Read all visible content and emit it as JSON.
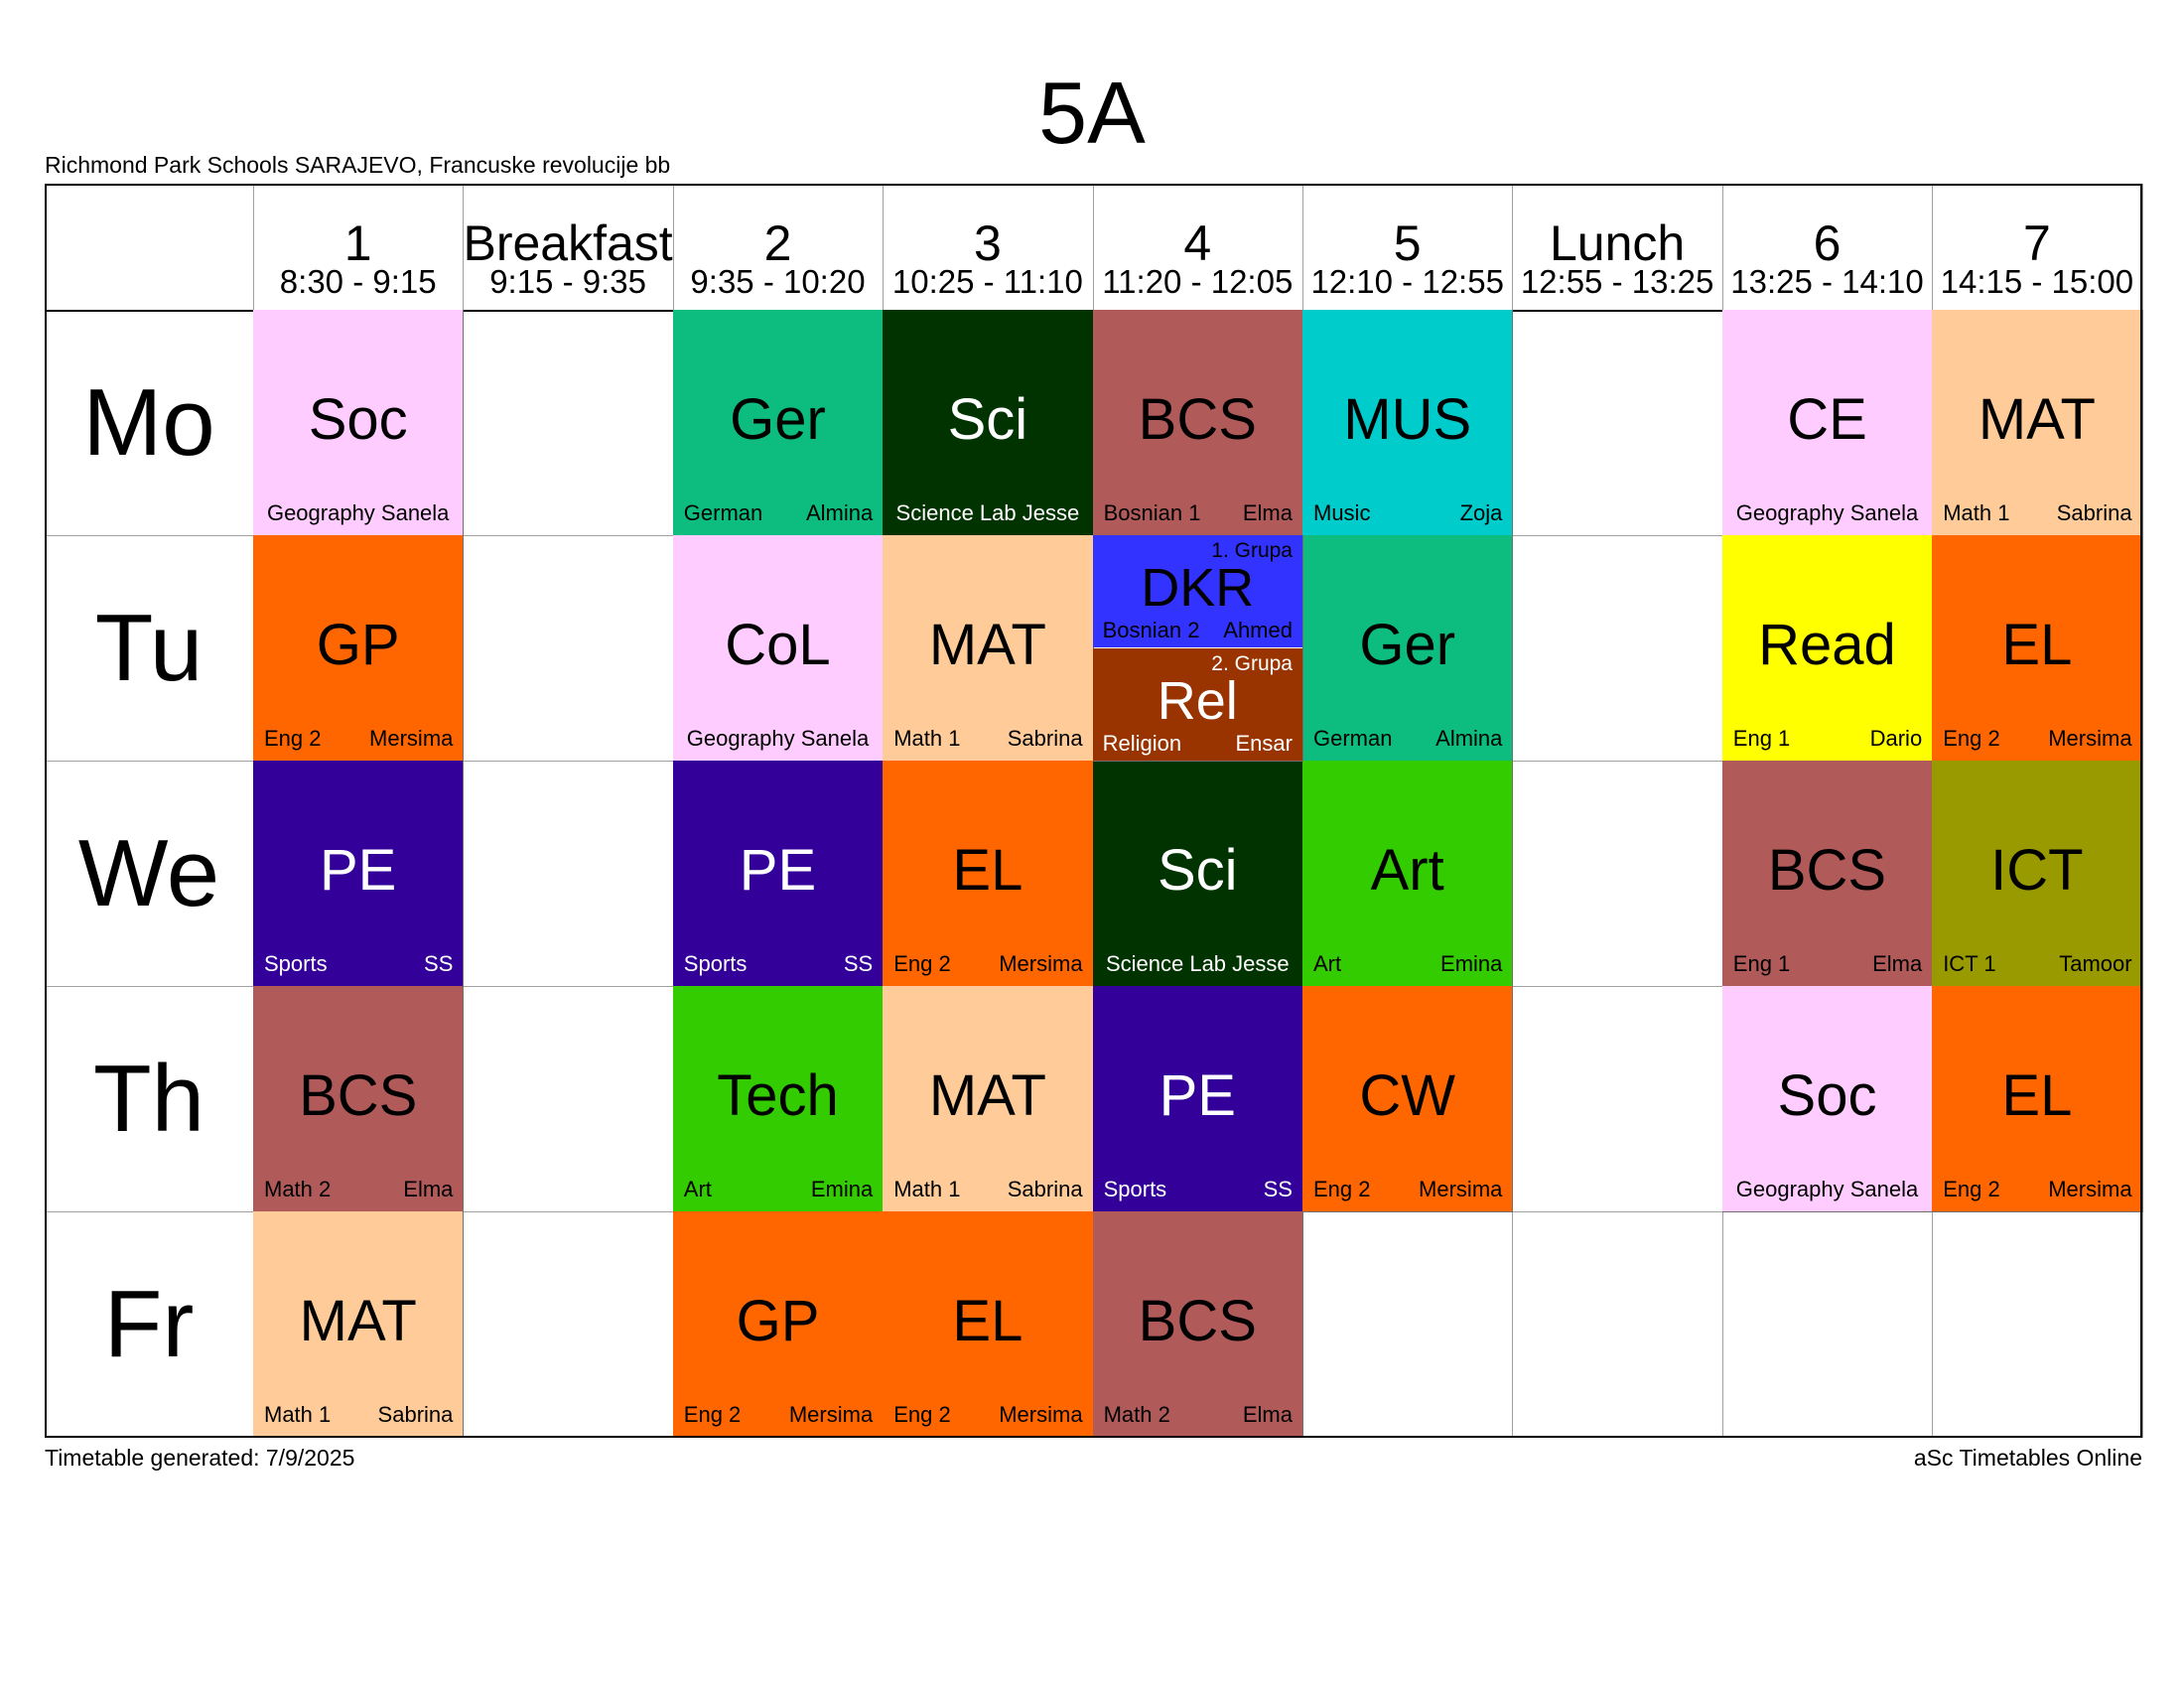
{
  "title": "5A",
  "school": "Richmond Park Schools SARAJEVO, Francuske revolucije bb",
  "footer": {
    "generated": "Timetable generated: 7/9/2025",
    "brand": "aSc Timetables Online"
  },
  "periods": [
    {
      "num": "1",
      "time": "8:30 - 9:15"
    },
    {
      "num": "Breakfast",
      "time": "9:15 - 9:35"
    },
    {
      "num": "2",
      "time": "9:35 - 10:20"
    },
    {
      "num": "3",
      "time": "10:25 - 11:10"
    },
    {
      "num": "4",
      "time": "11:20 - 12:05"
    },
    {
      "num": "5",
      "time": "12:10 - 12:55"
    },
    {
      "num": "Lunch",
      "time": "12:55 - 13:25"
    },
    {
      "num": "6",
      "time": "13:25 - 14:10"
    },
    {
      "num": "7",
      "time": "14:15 - 15:00"
    }
  ],
  "days": [
    "Mo",
    "Tu",
    "We",
    "Th",
    "Fr"
  ],
  "colors": {
    "pink": "#ffccff",
    "green_teal": "#0dbd80",
    "dark_green": "#003300",
    "brown": "#b05a5a",
    "cyan": "#00cccc",
    "peach": "#ffcc99",
    "orange": "#ff6600",
    "blue": "#3333ff",
    "rust": "#993300",
    "yellow": "#ffff00",
    "purple": "#330099",
    "lime": "#33cc00",
    "olive": "#999900"
  },
  "lessons": [
    {
      "day": 0,
      "col": 0,
      "subject": "Soc",
      "room": "Geography Sanela",
      "teacher": "",
      "color": "#ffccff",
      "light": false,
      "centered": true
    },
    {
      "day": 0,
      "col": 2,
      "subject": "Ger",
      "room": "German",
      "teacher": "Almina",
      "color": "#0dbd80",
      "light": false
    },
    {
      "day": 0,
      "col": 3,
      "subject": "Sci",
      "room": "Science Lab Jesse",
      "teacher": "",
      "color": "#003300",
      "light": true,
      "centered": true
    },
    {
      "day": 0,
      "col": 4,
      "subject": "BCS",
      "room": "Bosnian 1",
      "teacher": "Elma",
      "color": "#b05a5a",
      "light": false
    },
    {
      "day": 0,
      "col": 5,
      "subject": "MUS",
      "room": "Music",
      "teacher": "Zoja",
      "color": "#00cccc",
      "light": false
    },
    {
      "day": 0,
      "col": 7,
      "subject": "CE",
      "room": "Geography Sanela",
      "teacher": "",
      "color": "#ffccff",
      "light": false,
      "centered": true
    },
    {
      "day": 0,
      "col": 8,
      "subject": "MAT",
      "room": "Math 1",
      "teacher": "Sabrina",
      "color": "#ffcc99",
      "light": false
    },
    {
      "day": 1,
      "col": 0,
      "subject": "GP",
      "room": "Eng 2",
      "teacher": "Mersima",
      "color": "#ff6600",
      "light": false
    },
    {
      "day": 1,
      "col": 2,
      "subject": "CoL",
      "room": "Geography Sanela",
      "teacher": "",
      "color": "#ffccff",
      "light": false,
      "centered": true
    },
    {
      "day": 1,
      "col": 3,
      "subject": "MAT",
      "room": "Math 1",
      "teacher": "Sabrina",
      "color": "#ffcc99",
      "light": false
    },
    {
      "day": 1,
      "col": 5,
      "subject": "Ger",
      "room": "German",
      "teacher": "Almina",
      "color": "#0dbd80",
      "light": false
    },
    {
      "day": 1,
      "col": 7,
      "subject": "Read",
      "room": "Eng 1",
      "teacher": "Dario",
      "color": "#ffff00",
      "light": false
    },
    {
      "day": 1,
      "col": 8,
      "subject": "EL",
      "room": "Eng 2",
      "teacher": "Mersima",
      "color": "#ff6600",
      "light": false
    },
    {
      "day": 2,
      "col": 0,
      "subject": "PE",
      "room": "Sports",
      "teacher": "SS",
      "color": "#330099",
      "light": true
    },
    {
      "day": 2,
      "col": 2,
      "subject": "PE",
      "room": "Sports",
      "teacher": "SS",
      "color": "#330099",
      "light": true
    },
    {
      "day": 2,
      "col": 3,
      "subject": "EL",
      "room": "Eng 2",
      "teacher": "Mersima",
      "color": "#ff6600",
      "light": false
    },
    {
      "day": 2,
      "col": 4,
      "subject": "Sci",
      "room": "Science Lab Jesse",
      "teacher": "",
      "color": "#003300",
      "light": true,
      "centered": true
    },
    {
      "day": 2,
      "col": 5,
      "subject": "Art",
      "room": "Art",
      "teacher": "Emina",
      "color": "#33cc00",
      "light": false
    },
    {
      "day": 2,
      "col": 7,
      "subject": "BCS",
      "room": "Eng 1",
      "teacher": "Elma",
      "color": "#b05a5a",
      "light": false
    },
    {
      "day": 2,
      "col": 8,
      "subject": "ICT",
      "room": "ICT 1",
      "teacher": "Tamoor",
      "color": "#999900",
      "light": false
    },
    {
      "day": 3,
      "col": 0,
      "subject": "BCS",
      "room": "Math 2",
      "teacher": "Elma",
      "color": "#b05a5a",
      "light": false
    },
    {
      "day": 3,
      "col": 2,
      "subject": "Tech",
      "room": "Art",
      "teacher": "Emina",
      "color": "#33cc00",
      "light": false
    },
    {
      "day": 3,
      "col": 3,
      "subject": "MAT",
      "room": "Math 1",
      "teacher": "Sabrina",
      "color": "#ffcc99",
      "light": false
    },
    {
      "day": 3,
      "col": 4,
      "subject": "PE",
      "room": "Sports",
      "teacher": "SS",
      "color": "#330099",
      "light": true
    },
    {
      "day": 3,
      "col": 5,
      "subject": "CW",
      "room": "Eng 2",
      "teacher": "Mersima",
      "color": "#ff6600",
      "light": false
    },
    {
      "day": 3,
      "col": 7,
      "subject": "Soc",
      "room": "Geography Sanela",
      "teacher": "",
      "color": "#ffccff",
      "light": false,
      "centered": true
    },
    {
      "day": 3,
      "col": 8,
      "subject": "EL",
      "room": "Eng 2",
      "teacher": "Mersima",
      "color": "#ff6600",
      "light": false
    },
    {
      "day": 4,
      "col": 0,
      "subject": "MAT",
      "room": "Math 1",
      "teacher": "Sabrina",
      "color": "#ffcc99",
      "light": false
    },
    {
      "day": 4,
      "col": 2,
      "subject": "GP",
      "room": "Eng 2",
      "teacher": "Mersima",
      "color": "#ff6600",
      "light": false
    },
    {
      "day": 4,
      "col": 3,
      "subject": "EL",
      "room": "Eng 2",
      "teacher": "Mersima",
      "color": "#ff6600",
      "light": false
    },
    {
      "day": 4,
      "col": 4,
      "subject": "BCS",
      "room": "Math 2",
      "teacher": "Elma",
      "color": "#b05a5a",
      "light": false
    }
  ],
  "split_lesson": {
    "day": 1,
    "col": 4,
    "groups": [
      {
        "group": "1. Grupa",
        "subject": "DKR",
        "room": "Bosnian 2",
        "teacher": "Ahmed",
        "color": "#3333ff",
        "light": false
      },
      {
        "group": "2. Grupa",
        "subject": "Rel",
        "room": "Religion",
        "teacher": "Ensar",
        "color": "#993300",
        "light": true
      }
    ]
  }
}
